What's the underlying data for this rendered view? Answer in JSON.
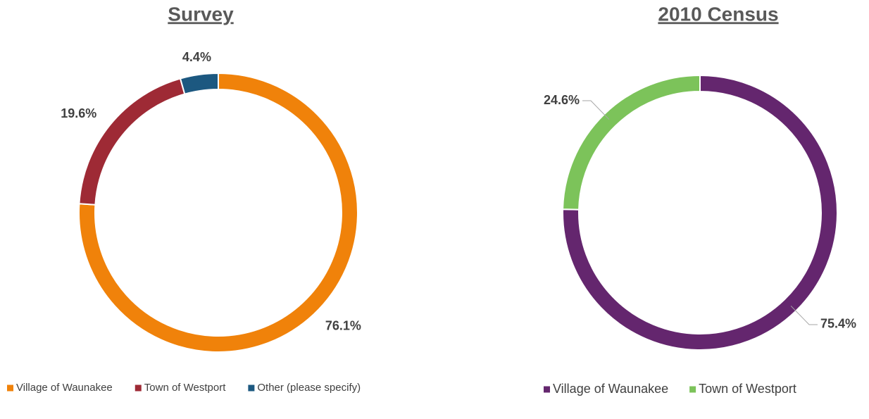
{
  "chart_data": [
    {
      "type": "pie",
      "donut": true,
      "title": "Survey",
      "categories": [
        "Village of Waunakee",
        "Town of Westport",
        "Other (please specify)"
      ],
      "values": [
        76.1,
        19.6,
        4.4
      ],
      "value_labels": [
        "76.1%",
        "19.6%",
        "4.4%"
      ],
      "colors": [
        "#f0820a",
        "#9e2a35",
        "#1c5880"
      ],
      "leader_lines": false
    },
    {
      "type": "pie",
      "donut": true,
      "title": "2010 Census",
      "categories": [
        "Village of Waunakee",
        "Town of Westport"
      ],
      "values": [
        75.4,
        24.6
      ],
      "value_labels": [
        "75.4%",
        "24.6%"
      ],
      "colors": [
        "#64266e",
        "#7cc35a"
      ],
      "leader_lines": true
    }
  ]
}
